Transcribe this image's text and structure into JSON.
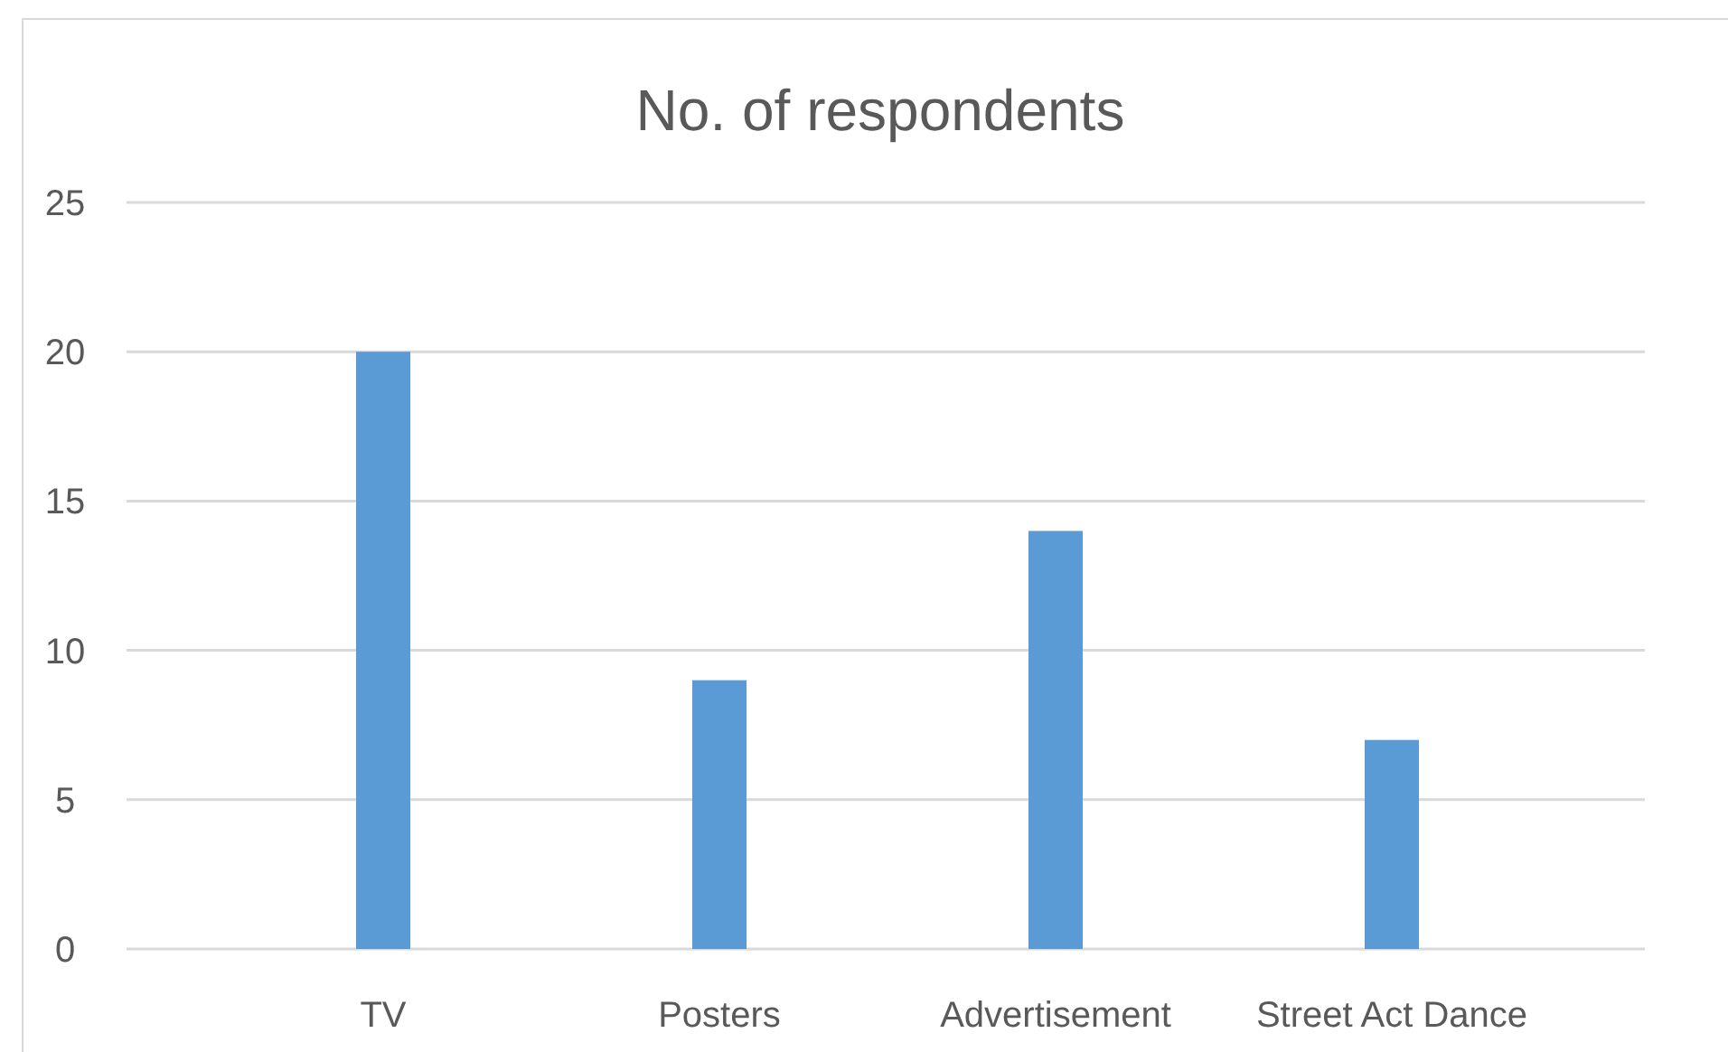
{
  "chart_data": {
    "type": "bar",
    "title": "No. of respondents",
    "categories": [
      "TV",
      "Posters",
      "Advertisement",
      "Street Act Dance"
    ],
    "values": [
      20,
      9,
      14,
      7
    ],
    "color": "#5b9bd5",
    "ylim": [
      0,
      25
    ],
    "yticks": [
      0,
      5,
      10,
      15,
      20,
      25
    ],
    "grid": "y"
  }
}
